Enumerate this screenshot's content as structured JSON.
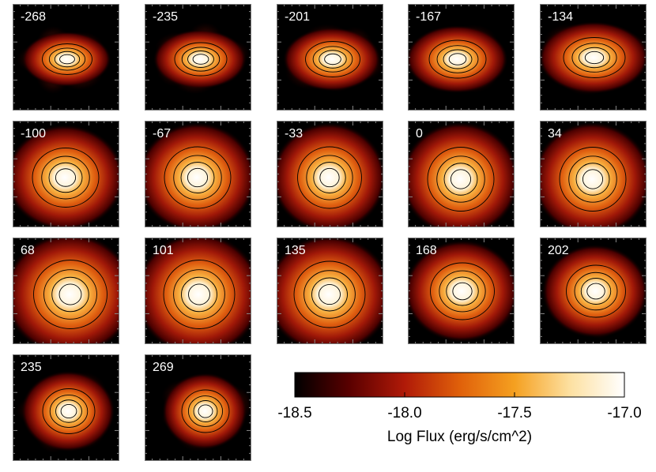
{
  "panels": [
    {
      "label": "-268"
    },
    {
      "label": "-235"
    },
    {
      "label": "-201"
    },
    {
      "label": "-167"
    },
    {
      "label": "-134"
    },
    {
      "label": "-100"
    },
    {
      "label": "-67"
    },
    {
      "label": "-33"
    },
    {
      "label": "0"
    },
    {
      "label": "34"
    },
    {
      "label": "68"
    },
    {
      "label": "101"
    },
    {
      "label": "135"
    },
    {
      "label": "168"
    },
    {
      "label": "202"
    },
    {
      "label": "235"
    },
    {
      "label": "269"
    }
  ],
  "colorbar": {
    "lim": [
      -18.5,
      -17
    ],
    "ticks": [
      -18.5,
      {
        "value": -18,
        "label": "-18.0"
      },
      -17.5,
      {
        "value": -17,
        "label": "-17.0"
      }
    ],
    "label": "Log Flux (erg/s/cm^2)",
    "colors": [
      "#000000",
      "#5a0000",
      "#b01a08",
      "#e0600a",
      "#f5a020",
      "#fde0a0",
      "#ffffff"
    ]
  }
}
